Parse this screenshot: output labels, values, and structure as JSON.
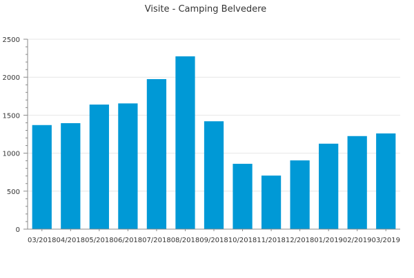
{
  "chart_data": {
    "type": "bar",
    "title": "Visite - Camping Belvedere",
    "xlabel": "",
    "ylabel": "",
    "categories": [
      "03/2018",
      "04/2018",
      "05/2018",
      "06/2018",
      "07/2018",
      "08/2018",
      "09/2018",
      "10/2018",
      "11/2018",
      "12/2018",
      "01/2019",
      "02/2019",
      "03/2019"
    ],
    "values": [
      1370,
      1395,
      1640,
      1655,
      1975,
      2275,
      1420,
      860,
      705,
      905,
      1125,
      1225,
      1260
    ],
    "ylim": [
      0,
      2500
    ],
    "yticks": [
      0,
      500,
      1000,
      1500,
      2000,
      2500
    ],
    "grid": true,
    "legend": "none",
    "bar_color": "#0099d6"
  }
}
